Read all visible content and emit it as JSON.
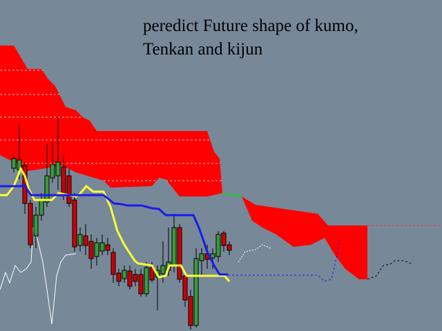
{
  "annotation": {
    "lines": [
      "peredict Future shape of kumo,",
      "Tenkan and kijun"
    ]
  }
}
